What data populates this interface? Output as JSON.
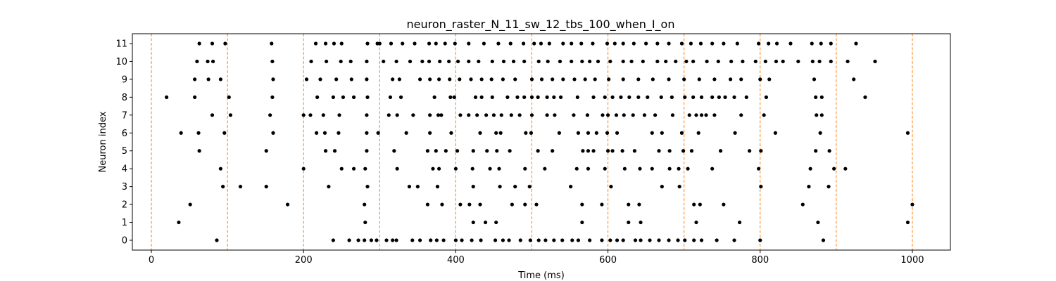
{
  "chart_data": {
    "type": "scatter",
    "title": "neuron_raster_N_11_sw_12_tbs_100_when_I_on",
    "xlabel": "Time (ms)",
    "ylabel": "Neuron index",
    "xlim": [
      -25,
      1050
    ],
    "ylim": [
      -0.55,
      11.55
    ],
    "xticks": [
      0,
      200,
      400,
      600,
      800,
      1000
    ],
    "yticks": [
      0,
      1,
      2,
      3,
      4,
      5,
      6,
      7,
      8,
      9,
      10,
      11
    ],
    "grid": false,
    "point_color": "#000000",
    "vlines": {
      "x": [
        0,
        100,
        200,
        300,
        400,
        500,
        600,
        700,
        800,
        900,
        1000
      ],
      "color": "#ff7f0e",
      "style": "dashed"
    },
    "series": [
      {
        "neuron": 0,
        "x": [
          86,
          239,
          260,
          272,
          280,
          289,
          296,
          309,
          317,
          322,
          343,
          353,
          367,
          375,
          384,
          400,
          408,
          421,
          433,
          452,
          462,
          470,
          485,
          498,
          509,
          518,
          529,
          540,
          553,
          561,
          576,
          592,
          603,
          612,
          620,
          636,
          643,
          655,
          667,
          680,
          692,
          701,
          713,
          723,
          743,
          766,
          800,
          883
        ]
      },
      {
        "neuron": 1,
        "x": [
          36,
          281,
          423,
          439,
          453,
          566,
          627,
          643,
          716,
          773,
          876,
          994
        ]
      },
      {
        "neuron": 2,
        "x": [
          51,
          179,
          280,
          363,
          382,
          406,
          418,
          432,
          474,
          491,
          506,
          566,
          592,
          627,
          641,
          713,
          721,
          752,
          856,
          1000
        ]
      },
      {
        "neuron": 3,
        "x": [
          94,
          117,
          151,
          233,
          284,
          339,
          350,
          376,
          423,
          458,
          478,
          497,
          551,
          604,
          671,
          694,
          801,
          864,
          890
        ]
      },
      {
        "neuron": 4,
        "x": [
          91,
          200,
          250,
          266,
          281,
          323,
          370,
          378,
          400,
          422,
          445,
          457,
          491,
          517,
          559,
          574,
          596,
          622,
          642,
          658,
          681,
          693,
          705,
          737,
          798,
          866,
          897,
          912
        ]
      },
      {
        "neuron": 5,
        "x": [
          63,
          151,
          229,
          241,
          283,
          319,
          363,
          374,
          387,
          402,
          423,
          441,
          454,
          471,
          508,
          527,
          567,
          574,
          581,
          600,
          606,
          619,
          635,
          667,
          681,
          699,
          710,
          748,
          786,
          801,
          873,
          891
        ]
      },
      {
        "neuron": 6,
        "x": [
          39,
          62,
          96,
          160,
          217,
          228,
          246,
          283,
          298,
          335,
          366,
          394,
          432,
          453,
          459,
          492,
          499,
          536,
          561,
          574,
          585,
          599,
          612,
          658,
          671,
          697,
          719,
          767,
          820,
          879,
          994
        ]
      },
      {
        "neuron": 7,
        "x": [
          80,
          104,
          156,
          200,
          209,
          226,
          247,
          283,
          312,
          323,
          344,
          366,
          377,
          381,
          406,
          417,
          428,
          440,
          450,
          460,
          473,
          484,
          500,
          520,
          530,
          555,
          573,
          593,
          600,
          611,
          621,
          633,
          648,
          662,
          685,
          707,
          716,
          723,
          729,
          740,
          775,
          805,
          874,
          881
        ]
      },
      {
        "neuron": 8,
        "x": [
          20,
          57,
          102,
          159,
          218,
          239,
          252,
          266,
          284,
          314,
          328,
          372,
          393,
          398,
          426,
          434,
          448,
          468,
          481,
          490,
          500,
          508,
          520,
          529,
          538,
          560,
          581,
          596,
          606,
          617,
          628,
          640,
          652,
          670,
          684,
          701,
          712,
          723,
          737,
          746,
          754,
          766,
          782,
          808,
          873,
          881,
          938
        ]
      },
      {
        "neuron": 9,
        "x": [
          57,
          75,
          91,
          160,
          204,
          222,
          243,
          263,
          283,
          317,
          326,
          353,
          366,
          378,
          392,
          405,
          420,
          434,
          447,
          462,
          478,
          500,
          513,
          527,
          541,
          556,
          570,
          583,
          601,
          620,
          640,
          659,
          680,
          700,
          720,
          740,
          761,
          775,
          800,
          812,
          871,
          923
        ]
      },
      {
        "neuron": 10,
        "x": [
          60,
          74,
          81,
          159,
          210,
          230,
          249,
          262,
          283,
          305,
          322,
          340,
          356,
          365,
          379,
          391,
          403,
          417,
          430,
          448,
          463,
          476,
          490,
          509,
          521,
          537,
          552,
          566,
          576,
          587,
          603,
          620,
          631,
          646,
          665,
          676,
          689,
          703,
          712,
          730,
          745,
          762,
          777,
          794,
          807,
          821,
          830,
          850,
          869,
          878,
          893,
          915,
          951
        ]
      },
      {
        "neuron": 11,
        "x": [
          63,
          80,
          97,
          158,
          216,
          229,
          240,
          250,
          284,
          297,
          300,
          315,
          330,
          346,
          365,
          374,
          386,
          399,
          417,
          437,
          456,
          472,
          489,
          503,
          512,
          523,
          541,
          552,
          565,
          580,
          599,
          609,
          620,
          634,
          650,
          665,
          680,
          697,
          709,
          722,
          737,
          752,
          770,
          798,
          811,
          822,
          840,
          868,
          880,
          893,
          926
        ]
      }
    ]
  }
}
